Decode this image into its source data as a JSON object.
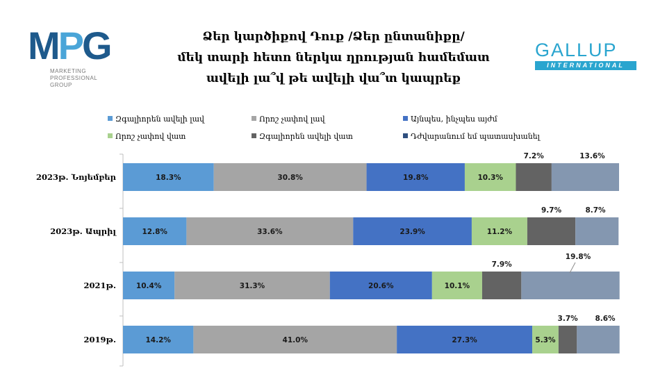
{
  "logo_left": {
    "text_m": "M",
    "text_p": "P",
    "text_g": "G",
    "line1": "MARKETING",
    "line2": "PROFESSIONAL",
    "line3": "GROUP"
  },
  "title_lines": [
    "Ձեր կարծիքով Դուք /Ձեր ընտանիքը/",
    "մեկ տարի հետո ներկա ղրության համեմատ",
    "ավելի լա՞վ թե ավելի վա՞տ կապրեք"
  ],
  "logo_right": {
    "line1": "GALLUP",
    "line2": "INTERNATIONAL"
  },
  "chart_data": {
    "type": "bar",
    "orientation": "horizontal",
    "stacked": true,
    "percent_stacked": true,
    "legend_position": "top",
    "categories": [
      "2023թ. Նոյեմբեր",
      "2023թ. Ապրիլ",
      "2021թ.",
      "2019թ."
    ],
    "series": [
      {
        "name": "Զգալիորեն ավելի լավ",
        "color": "#5b9bd5",
        "values": [
          18.3,
          12.8,
          10.4,
          14.2
        ],
        "labels": [
          "18.3%",
          "12.8%",
          "10.4%",
          "14.2%"
        ]
      },
      {
        "name": "Որոշ չափով լավ",
        "color": "#a5a5a5",
        "values": [
          30.8,
          33.6,
          31.3,
          41.0
        ],
        "labels": [
          "30.8%",
          "33.6%",
          "31.3%",
          "41.0%"
        ]
      },
      {
        "name": "Այնպես, ինչպես այժմ",
        "color": "#4472c4",
        "values": [
          19.8,
          23.9,
          20.6,
          27.3
        ],
        "labels": [
          "19.8%",
          "23.9%",
          "20.6%",
          "27.3%"
        ]
      },
      {
        "name": "Որոշ չափով վատ",
        "color": "#a9d18e",
        "values": [
          10.3,
          11.2,
          10.1,
          5.3
        ],
        "labels": [
          "10.3%",
          "11.2%",
          "10.1%",
          "5.3%"
        ]
      },
      {
        "name": "Զգալիորեն ավելի վատ",
        "color": "#636363",
        "values": [
          7.2,
          9.7,
          7.9,
          3.7
        ],
        "labels": [
          "7.2%",
          "9.7%",
          "7.9%",
          "3.7%"
        ]
      },
      {
        "name": "Դժվարանում եմ պատասխանել",
        "color": "#8497b0",
        "values": [
          13.6,
          8.7,
          19.8,
          8.6
        ],
        "labels": [
          "13.6%",
          "8.7%",
          "19.8%",
          "8.6%"
        ]
      }
    ],
    "legend_swatch_colors": [
      "#5b9bd5",
      "#a5a5a5",
      "#4472c4",
      "#a9d18e",
      "#636363",
      "#2f4f7f"
    ]
  }
}
